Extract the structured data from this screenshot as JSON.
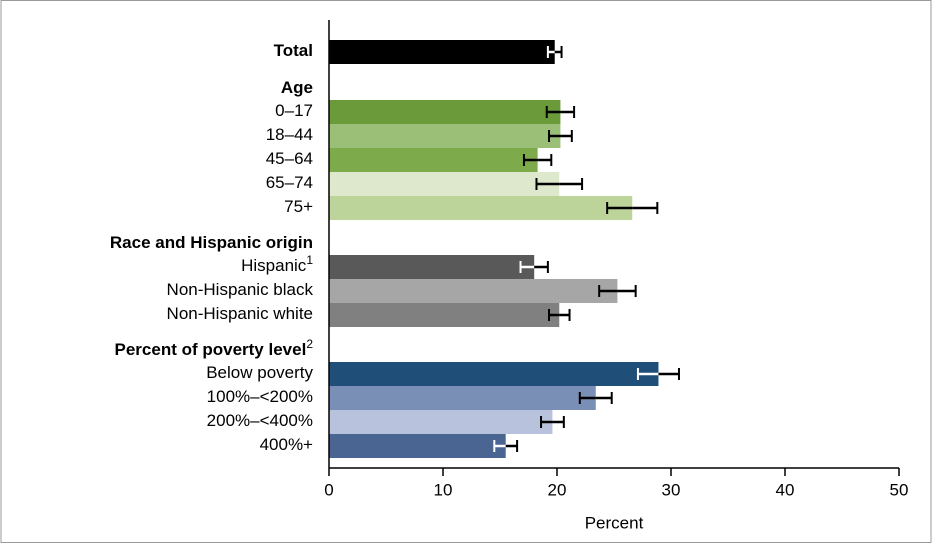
{
  "chart_data": {
    "type": "bar",
    "orientation": "horizontal",
    "x_label": "Percent",
    "xlim": [
      0,
      50
    ],
    "xticks": [
      0,
      10,
      20,
      30,
      40,
      50
    ],
    "groups": [
      {
        "bold": true,
        "categories": [
          "Total"
        ],
        "values": [
          19.8
        ],
        "errors": [
          0.6
        ],
        "colors": [
          "#000000"
        ]
      },
      {
        "name": "Age",
        "categories": [
          "0–17",
          "18–44",
          "45–64",
          "65–74",
          "75+"
        ],
        "values": [
          20.3,
          20.3,
          18.3,
          20.2,
          26.6
        ],
        "errors": [
          1.2,
          1.0,
          1.2,
          2.0,
          2.2
        ],
        "colors": [
          "#6a9a3a",
          "#9cbf77",
          "#7daa4a",
          "#dde8cd",
          "#bcd49a"
        ]
      },
      {
        "name": "Race and Hispanic origin",
        "categories": [
          "Hispanic",
          "Non-Hispanic black",
          "Non-Hispanic white"
        ],
        "footnotes": [
          "1",
          null,
          null
        ],
        "values": [
          18.0,
          25.3,
          20.2
        ],
        "errors": [
          1.2,
          1.6,
          0.9
        ],
        "colors": [
          "#595959",
          "#a6a6a6",
          "#808080"
        ]
      },
      {
        "name": "Percent of poverty level",
        "name_footnote": "2",
        "categories": [
          "Below poverty",
          "100%–<200%",
          "200%–<400%",
          "400%+"
        ],
        "values": [
          28.9,
          23.4,
          19.6,
          15.5
        ],
        "errors": [
          1.8,
          1.4,
          1.0,
          1.0
        ],
        "colors": [
          "#1f4e79",
          "#7a8fb5",
          "#b8c2dc",
          "#4a6591"
        ]
      }
    ]
  }
}
